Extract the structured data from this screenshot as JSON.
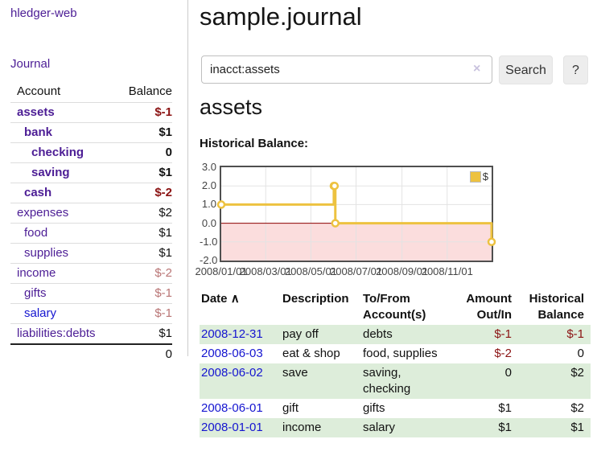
{
  "app": {
    "brand": "hledger-web"
  },
  "sidebar": {
    "journal_link": "Journal",
    "accounts_table": {
      "col_account": "Account",
      "col_balance": "Balance",
      "rows": [
        {
          "name": "assets",
          "balance": "$-1",
          "indent": 0,
          "bold": true,
          "balance_class": "neg-strong",
          "name_class": "purple"
        },
        {
          "name": "bank",
          "balance": "$1",
          "indent": 1,
          "bold": true,
          "balance_class": "pos",
          "name_class": "purple"
        },
        {
          "name": "checking",
          "balance": "0",
          "indent": 2,
          "bold": true,
          "balance_class": "pos",
          "name_class": "purple"
        },
        {
          "name": "saving",
          "balance": "$1",
          "indent": 2,
          "bold": true,
          "balance_class": "pos",
          "name_class": "purple"
        },
        {
          "name": "cash",
          "balance": "$-2",
          "indent": 1,
          "bold": true,
          "balance_class": "neg-strong",
          "name_class": "purple"
        },
        {
          "name": "expenses",
          "balance": "$2",
          "indent": 0,
          "bold": false,
          "balance_class": "pos",
          "name_class": "purple"
        },
        {
          "name": "food",
          "balance": "$1",
          "indent": 1,
          "bold": false,
          "balance_class": "pos",
          "name_class": "purple"
        },
        {
          "name": "supplies",
          "balance": "$1",
          "indent": 1,
          "bold": false,
          "balance_class": "pos",
          "name_class": "purple"
        },
        {
          "name": "income",
          "balance": "$-2",
          "indent": 0,
          "bold": false,
          "balance_class": "neg-soft",
          "name_class": "purple"
        },
        {
          "name": "gifts",
          "balance": "$-1",
          "indent": 1,
          "bold": false,
          "balance_class": "neg-soft",
          "name_class": "purple"
        },
        {
          "name": "salary",
          "balance": "$-1",
          "indent": 1,
          "bold": false,
          "balance_class": "neg-soft",
          "name_class": "blue"
        },
        {
          "name": "liabilities:debts",
          "balance": "$1",
          "indent": 0,
          "bold": false,
          "balance_class": "pos",
          "name_class": "purple"
        }
      ],
      "total": "0"
    }
  },
  "header": {
    "title": "sample.journal"
  },
  "search": {
    "value": "inacct:assets",
    "clear_icon": "×",
    "button_label": "Search",
    "help_label": "?"
  },
  "account_view": {
    "heading": "assets",
    "chart_title": "Historical Balance:"
  },
  "chart_data": {
    "type": "line",
    "step": true,
    "legend": "$",
    "series_color": "#edc240",
    "x_start": "2008-01-01",
    "x_end": "2008-12-31",
    "points": [
      [
        "2008-01-01",
        1
      ],
      [
        "2008-06-01",
        2
      ],
      [
        "2008-06-02",
        2
      ],
      [
        "2008-06-03",
        0
      ],
      [
        "2008-12-31",
        -1
      ]
    ],
    "yticks": [
      "3.0",
      "2.0",
      "1.0",
      "0.0",
      "-1.0",
      "-2.0"
    ],
    "ylim": [
      -2,
      3
    ],
    "xticks": [
      "2008/01/01",
      "2008/03/01",
      "2008/05/01",
      "2008/07/01",
      "2008/09/01",
      "2008/11/01"
    ],
    "grid_color": "#e3e3e3",
    "negative_fill": "#fbdddd",
    "zero_line_color": "#8b0000"
  },
  "register": {
    "headers": {
      "date": "Date",
      "sort_icon": "∧",
      "description": "Description",
      "accounts": "To/From Account(s)",
      "amount": "Amount Out/In",
      "balance": "Historical Balance"
    },
    "rows": [
      {
        "date": "2008-12-31",
        "description": "pay off",
        "accounts": "debts",
        "amount": "$-1",
        "amount_neg": true,
        "balance": "$-1",
        "balance_neg": true
      },
      {
        "date": "2008-06-03",
        "description": "eat & shop",
        "accounts": "food, supplies",
        "amount": "$-2",
        "amount_neg": true,
        "balance": "0",
        "balance_neg": false
      },
      {
        "date": "2008-06-02",
        "description": "save",
        "accounts": "saving, checking",
        "amount": "0",
        "amount_neg": false,
        "balance": "$2",
        "balance_neg": false
      },
      {
        "date": "2008-06-01",
        "description": "gift",
        "accounts": "gifts",
        "amount": "$1",
        "amount_neg": false,
        "balance": "$2",
        "balance_neg": false
      },
      {
        "date": "2008-01-01",
        "description": "income",
        "accounts": "salary",
        "amount": "$1",
        "amount_neg": false,
        "balance": "$1",
        "balance_neg": false
      }
    ]
  }
}
